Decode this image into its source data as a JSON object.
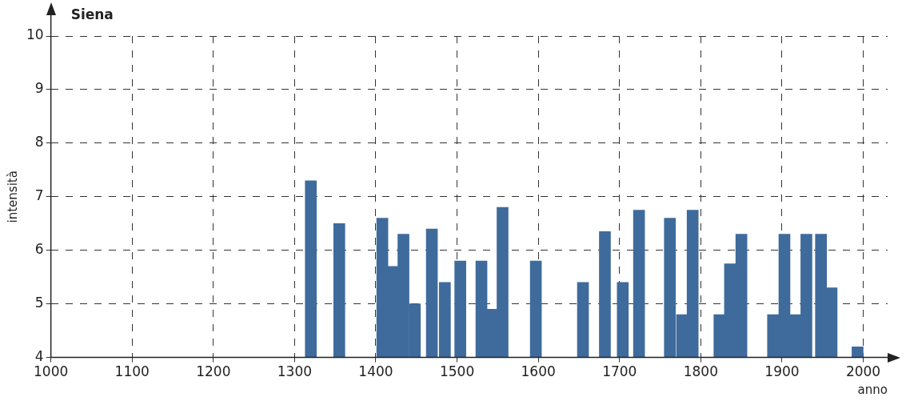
{
  "chart_data": {
    "type": "bar",
    "title": "Siena",
    "xlabel": "anno",
    "ylabel": "intensità",
    "x": [
      1320,
      1355,
      1408,
      1421,
      1434,
      1448,
      1469,
      1485,
      1504,
      1530,
      1543,
      1556,
      1597,
      1655,
      1682,
      1704,
      1724,
      1762,
      1777,
      1790,
      1823,
      1836,
      1850,
      1889,
      1903,
      1917,
      1930,
      1948,
      1961,
      1993
    ],
    "series": [
      {
        "color": "#3e6b9c",
        "values": [
          7.3,
          6.5,
          6.6,
          5.7,
          6.3,
          5.0,
          6.4,
          5.4,
          5.8,
          5.8,
          4.9,
          6.8,
          5.8,
          5.4,
          6.35,
          5.4,
          6.75,
          6.6,
          4.8,
          6.75,
          4.8,
          5.75,
          6.3,
          4.8,
          6.3,
          4.8,
          6.3,
          6.3,
          5.3,
          4.2
        ]
      }
    ],
    "xlim": [
      1000,
      2030
    ],
    "xticks": [
      1000,
      1100,
      1200,
      1300,
      1400,
      1500,
      1600,
      1700,
      1800,
      1900,
      2000
    ],
    "ylim": [
      4,
      10
    ],
    "yticks": [
      4,
      5,
      6,
      7,
      8,
      9,
      10
    ],
    "grid": true,
    "legend": false
  }
}
